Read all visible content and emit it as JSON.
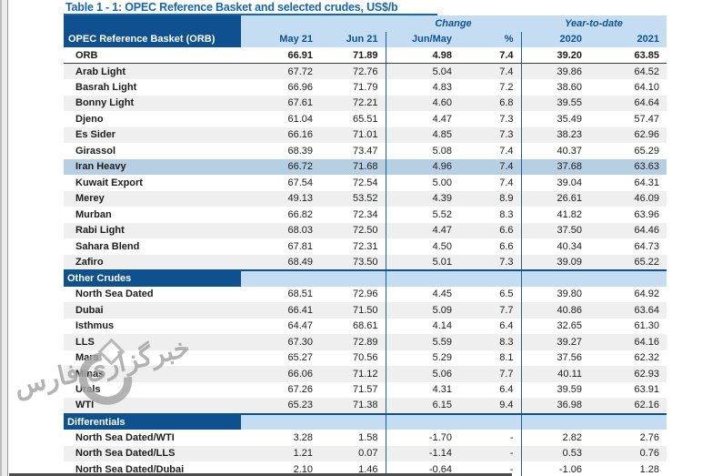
{
  "title": "Table 1 - 1: OPEC Reference Basket and selected crudes, US$/b",
  "colors": {
    "dark_blue_header": "#0f518e",
    "light_blue_header": "#c5ddf2",
    "title_blue": "#1566b0",
    "row_stripe_gray": "#efefef",
    "highlight_row_blue": "#b7cfe3",
    "grid_line_blue": "#1f5c9b",
    "watermark_gray": "#a3a3a3"
  },
  "header": {
    "corner": "OPEC Reference Basket (ORB)",
    "group_change": "Change",
    "group_ytd": "Year-to-date",
    "cols": [
      "May 21",
      "Jun 21",
      "Jun/May",
      "%",
      "2020",
      "2021"
    ]
  },
  "sections": [
    {
      "name": null,
      "rows": [
        {
          "label": "ORB",
          "values": [
            "66.91",
            "71.89",
            "4.98",
            "7.4",
            "39.20",
            "63.85"
          ],
          "bold": true
        },
        {
          "label": "Arab Light",
          "values": [
            "67.72",
            "72.76",
            "5.04",
            "7.4",
            "39.86",
            "64.52"
          ]
        },
        {
          "label": "Basrah Light",
          "values": [
            "66.96",
            "71.79",
            "4.83",
            "7.2",
            "38.60",
            "64.10"
          ]
        },
        {
          "label": "Bonny Light",
          "values": [
            "67.61",
            "72.21",
            "4.60",
            "6.8",
            "39.55",
            "64.64"
          ]
        },
        {
          "label": "Djeno",
          "values": [
            "61.04",
            "65.51",
            "4.47",
            "7.3",
            "35.49",
            "57.47"
          ]
        },
        {
          "label": "Es Sider",
          "values": [
            "66.16",
            "71.01",
            "4.85",
            "7.3",
            "38.23",
            "62.96"
          ]
        },
        {
          "label": "Girassol",
          "values": [
            "68.39",
            "73.47",
            "5.08",
            "7.4",
            "40.37",
            "65.29"
          ]
        },
        {
          "label": "Iran Heavy",
          "values": [
            "66.72",
            "71.68",
            "4.96",
            "7.4",
            "37.68",
            "63.63"
          ],
          "highlight": true
        },
        {
          "label": "Kuwait Export",
          "values": [
            "67.54",
            "72.54",
            "5.00",
            "7.4",
            "39.04",
            "64.31"
          ]
        },
        {
          "label": "Merey",
          "values": [
            "49.13",
            "53.52",
            "4.39",
            "8.9",
            "26.61",
            "46.09"
          ]
        },
        {
          "label": "Murban",
          "values": [
            "66.82",
            "72.34",
            "5.52",
            "8.3",
            "41.82",
            "63.96"
          ]
        },
        {
          "label": "Rabi Light",
          "values": [
            "68.03",
            "72.50",
            "4.47",
            "6.6",
            "37.50",
            "64.46"
          ]
        },
        {
          "label": "Sahara Blend",
          "values": [
            "67.81",
            "72.31",
            "4.50",
            "6.6",
            "40.34",
            "64.73"
          ]
        },
        {
          "label": "Zafiro",
          "values": [
            "68.49",
            "73.50",
            "5.01",
            "7.3",
            "39.09",
            "65.22"
          ]
        }
      ]
    },
    {
      "name": "Other Crudes",
      "rows": [
        {
          "label": "North Sea Dated",
          "values": [
            "68.51",
            "72.96",
            "4.45",
            "6.5",
            "39.80",
            "64.92"
          ]
        },
        {
          "label": "Dubai",
          "values": [
            "66.41",
            "71.50",
            "5.09",
            "7.7",
            "40.86",
            "63.64"
          ]
        },
        {
          "label": "Isthmus",
          "values": [
            "64.47",
            "68.61",
            "4.14",
            "6.4",
            "32.65",
            "61.30"
          ]
        },
        {
          "label": "LLS",
          "values": [
            "67.30",
            "72.89",
            "5.59",
            "8.3",
            "39.27",
            "64.16"
          ]
        },
        {
          "label": "Mars",
          "values": [
            "65.27",
            "70.56",
            "5.29",
            "8.1",
            "37.56",
            "62.32"
          ]
        },
        {
          "label": "Minas",
          "values": [
            "66.06",
            "71.12",
            "5.06",
            "7.7",
            "40.11",
            "62.93"
          ]
        },
        {
          "label": "Urals",
          "values": [
            "67.26",
            "71.57",
            "4.31",
            "6.4",
            "39.59",
            "63.91"
          ]
        },
        {
          "label": "WTI",
          "values": [
            "65.23",
            "71.38",
            "6.15",
            "9.4",
            "36.98",
            "62.16"
          ]
        }
      ]
    },
    {
      "name": "Differentials",
      "rows": [
        {
          "label": "North Sea Dated/WTI",
          "values": [
            "3.28",
            "1.58",
            "-1.70",
            "-",
            "2.82",
            "2.76"
          ]
        },
        {
          "label": "North Sea Dated/LLS",
          "values": [
            "1.21",
            "0.07",
            "-1.14",
            "-",
            "0.53",
            "0.76"
          ]
        },
        {
          "label": "North Sea Dated/Dubai",
          "values": [
            "2.10",
            "1.46",
            "-0.64",
            "-",
            "-1.06",
            "1.28"
          ]
        }
      ]
    }
  ],
  "watermark": {
    "text": "خبرگزاری فارس"
  }
}
